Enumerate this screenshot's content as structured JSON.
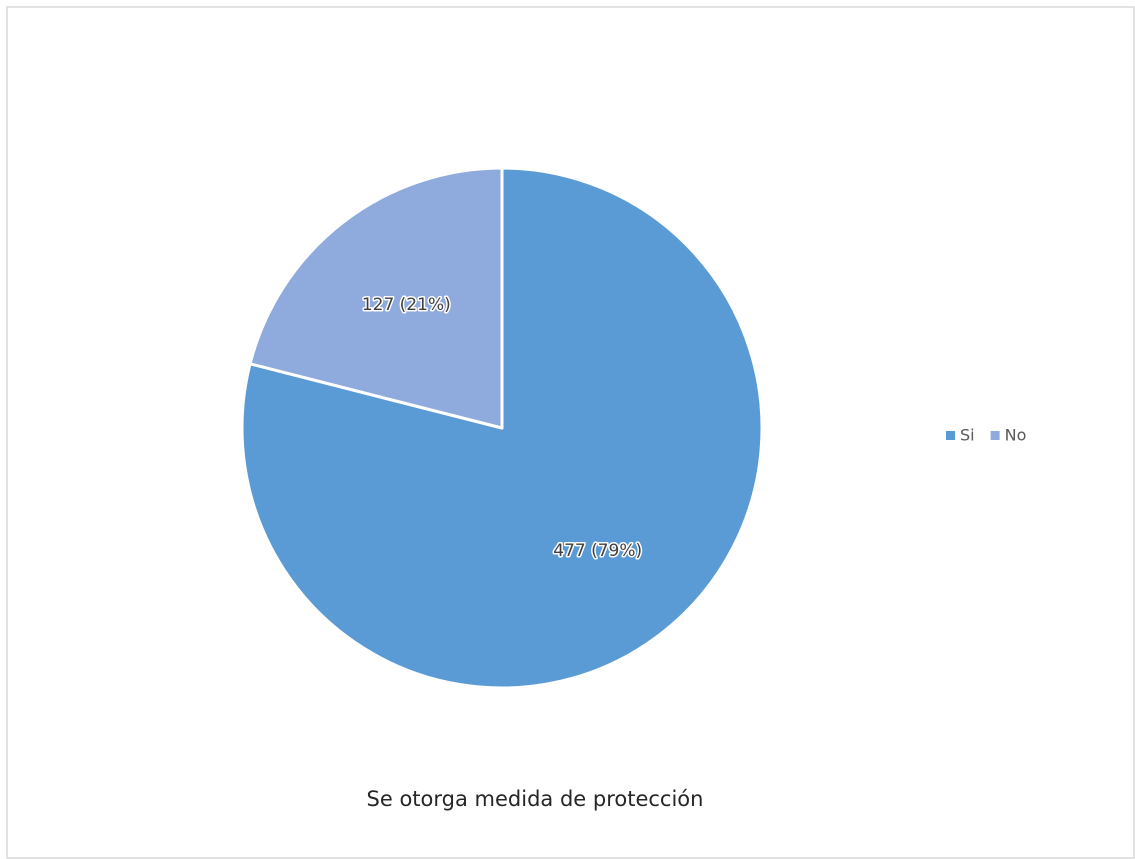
{
  "chart_data": {
    "type": "pie",
    "title": "Se otorga medida de protección",
    "categories": [
      "Si",
      "No"
    ],
    "values": [
      477,
      127
    ],
    "value_labels": [
      "477 (79%)",
      "127 (21%)"
    ],
    "colors": [
      "#5b9bd5",
      "#8faadc"
    ],
    "legend": "right"
  }
}
